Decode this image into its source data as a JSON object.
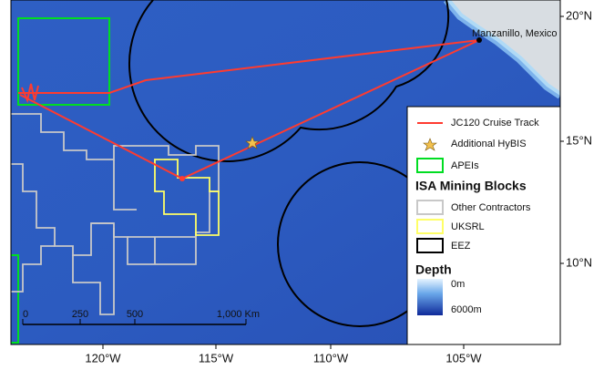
{
  "map": {
    "place_label": "Manzanillo, Mexico",
    "lon_ticks": [
      "120°W",
      "115°W",
      "110°W",
      "105°W"
    ],
    "lat_ticks": [
      "20°N",
      "15°N",
      "10°N"
    ],
    "scale_bar": [
      "0",
      "250",
      "500",
      "1,000 Km"
    ],
    "legend": {
      "items": [
        "JC120 Cruise Track",
        "Additional HyBIS",
        "APEIs"
      ],
      "section_title": "ISA Mining Blocks",
      "section_items": [
        "Other Contractors",
        "UKSRL",
        "EEZ"
      ],
      "depth": {
        "title": "Depth",
        "min": "0m",
        "max": "6000m"
      }
    }
  }
}
